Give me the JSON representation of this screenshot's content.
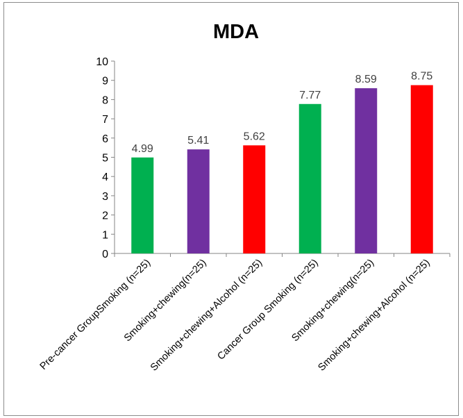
{
  "chart_data": {
    "type": "bar",
    "title": "MDA",
    "categories": [
      "Pre-cancer  GroupSmoking (n=25)",
      "Smoking+chewing(n=25)",
      "Smoking+chewing+Alcohol (n=25)",
      "Cancer  Group Smoking (n=25)",
      "Smoking+chewing(n=25)",
      "Smoking+chewing+Alcohol (n=25)"
    ],
    "values": [
      4.99,
      5.41,
      5.62,
      7.77,
      8.59,
      8.75
    ],
    "bar_colors": [
      "#00b050",
      "#7030a0",
      "#ff0000",
      "#00b050",
      "#7030a0",
      "#ff0000"
    ],
    "xlabel": "",
    "ylabel": "",
    "ylim": [
      0,
      10
    ],
    "yticks": [
      0,
      1,
      2,
      3,
      4,
      5,
      6,
      7,
      8,
      9,
      10
    ],
    "grid": false,
    "legend": "none",
    "data_labels": true
  }
}
